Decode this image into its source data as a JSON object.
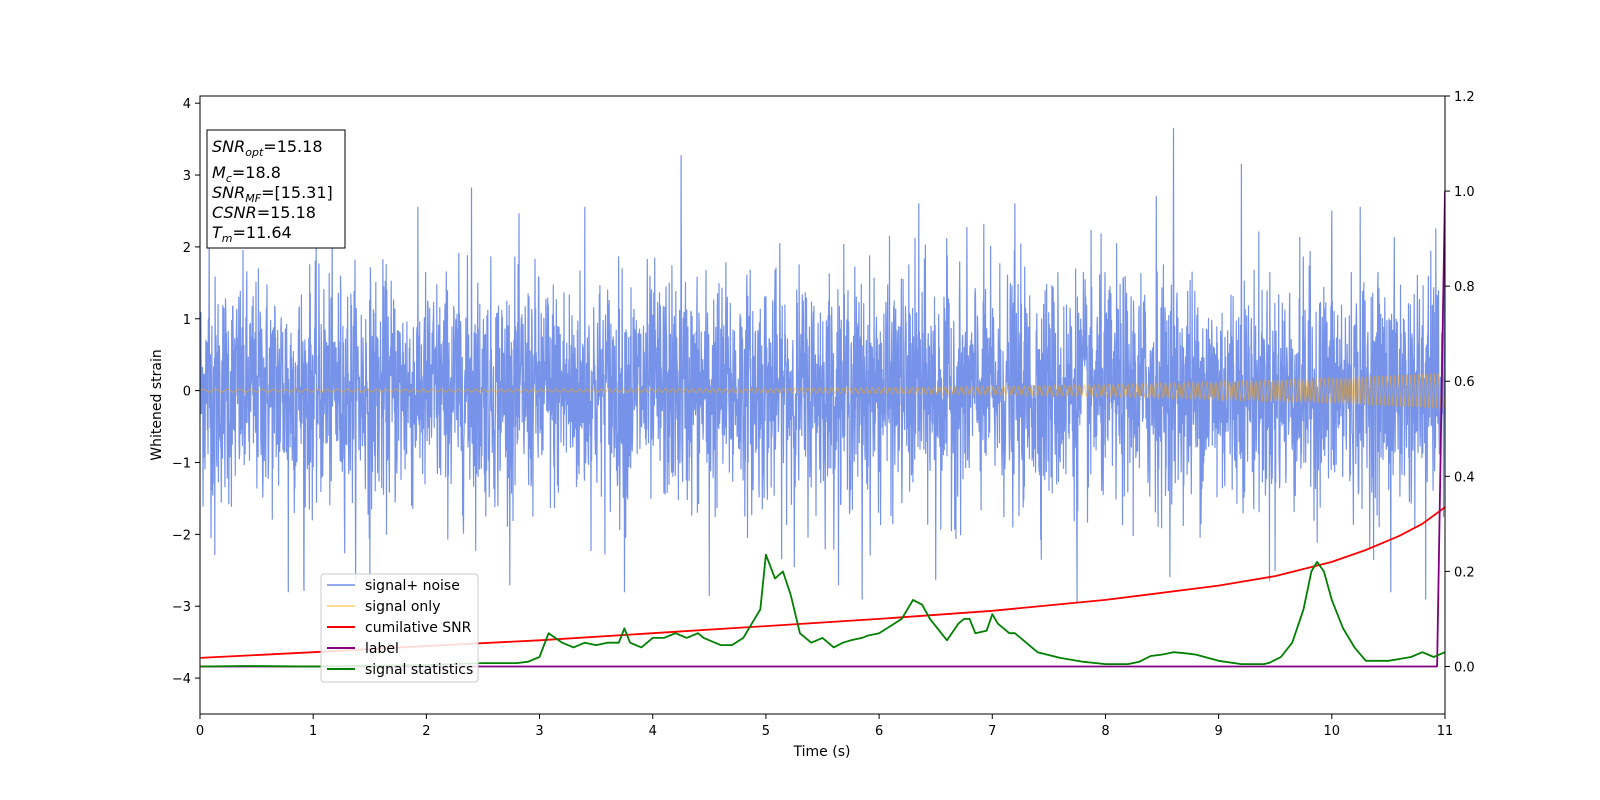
{
  "chart_data": {
    "type": "line",
    "xlabel": "Time (s)",
    "ylabel": "Whitened strain",
    "xlim": [
      0,
      11
    ],
    "ylim": [
      -4.5,
      4.1
    ],
    "ylim_right": [
      -0.1,
      1.2
    ],
    "xticks": [
      0,
      1,
      2,
      3,
      4,
      5,
      6,
      7,
      8,
      9,
      10,
      11
    ],
    "yticks": [
      -4,
      -3,
      -2,
      -1,
      0,
      1,
      2,
      3,
      4
    ],
    "yticks_right": [
      0.0,
      0.2,
      0.4,
      0.6,
      0.8,
      1.0,
      1.2
    ],
    "grid": false,
    "legend_placement": "lower-left",
    "info_box": [
      {
        "sym": "SNR",
        "sub": "opt",
        "rest": "=15.18"
      },
      {
        "sym": "M",
        "sub": "c",
        "rest": "=18.8"
      },
      {
        "sym": "SNR",
        "sub": "MF",
        "rest": "=[15.31]"
      },
      {
        "sym": "CSNR",
        "sub": "",
        "rest": "=15.18"
      },
      {
        "sym": "T",
        "sub": "m",
        "rest": "=11.64"
      }
    ],
    "series": [
      {
        "name": "signal+ noise",
        "axis": "left",
        "color": "#4169E1",
        "noise_std": 0.78,
        "spikes": [
          [
            0.08,
            2.3
          ],
          [
            0.13,
            -2.28
          ],
          [
            0.78,
            -2.8
          ],
          [
            0.92,
            -2.78
          ],
          [
            1.5,
            -2.75
          ],
          [
            2.4,
            2.82
          ],
          [
            3.4,
            2.55
          ],
          [
            3.75,
            -2.8
          ],
          [
            4.25,
            3.27
          ],
          [
            4.5,
            -2.85
          ],
          [
            5.85,
            -2.9
          ],
          [
            6.35,
            2.6
          ],
          [
            6.5,
            -2.63
          ],
          [
            7.2,
            2.6
          ],
          [
            7.75,
            -2.95
          ],
          [
            8.45,
            2.7
          ],
          [
            8.6,
            3.65
          ],
          [
            9.2,
            3.15
          ],
          [
            9.5,
            -2.5
          ],
          [
            10.0,
            2.5
          ],
          [
            10.25,
            2.55
          ],
          [
            10.52,
            -2.8
          ],
          [
            10.83,
            -2.9
          ],
          [
            10.92,
            2.25
          ]
        ]
      },
      {
        "name": "signal only",
        "axis": "left",
        "color": "#FFA500",
        "amplitude_start": 0.02,
        "amplitude_end": 0.25
      },
      {
        "name": "cumilative SNR",
        "axis": "right",
        "color": "#FF0000",
        "x": [
          0,
          1,
          2,
          3,
          4,
          5,
          6,
          7,
          8,
          9,
          9.5,
          10,
          10.3,
          10.6,
          10.8,
          11
        ],
        "values": [
          0.018,
          0.03,
          0.043,
          0.055,
          0.07,
          0.085,
          0.1,
          0.117,
          0.14,
          0.17,
          0.19,
          0.22,
          0.245,
          0.275,
          0.3,
          0.335
        ]
      },
      {
        "name": "label",
        "axis": "right",
        "color": "#800080",
        "x": [
          0,
          10.93,
          11
        ],
        "values": [
          0.0,
          0.0,
          1.0
        ]
      },
      {
        "name": "signal statistics",
        "axis": "right",
        "color": "#008000",
        "x": [
          0,
          0.4,
          1,
          2,
          2.5,
          2.8,
          2.9,
          3.0,
          3.08,
          3.2,
          3.3,
          3.4,
          3.5,
          3.6,
          3.7,
          3.75,
          3.8,
          3.9,
          4.0,
          4.1,
          4.2,
          4.3,
          4.4,
          4.45,
          4.55,
          4.6,
          4.7,
          4.8,
          4.9,
          4.95,
          5.0,
          5.08,
          5.15,
          5.22,
          5.3,
          5.4,
          5.5,
          5.6,
          5.68,
          5.75,
          5.85,
          5.9,
          6.0,
          6.1,
          6.2,
          6.3,
          6.38,
          6.45,
          6.55,
          6.6,
          6.7,
          6.75,
          6.8,
          6.85,
          6.95,
          7.0,
          7.05,
          7.1,
          7.15,
          7.2,
          7.3,
          7.4,
          7.6,
          7.8,
          8.0,
          8.2,
          8.3,
          8.4,
          8.5,
          8.6,
          8.7,
          8.8,
          9.0,
          9.2,
          9.4,
          9.45,
          9.55,
          9.65,
          9.75,
          9.82,
          9.87,
          9.93,
          10.0,
          10.1,
          10.2,
          10.3,
          10.5,
          10.7,
          10.8,
          10.9,
          11.0
        ],
        "values": [
          0.0,
          0.001,
          0.0,
          0.003,
          0.007,
          0.007,
          0.01,
          0.02,
          0.07,
          0.05,
          0.04,
          0.05,
          0.045,
          0.05,
          0.05,
          0.08,
          0.05,
          0.04,
          0.06,
          0.06,
          0.07,
          0.06,
          0.07,
          0.06,
          0.05,
          0.045,
          0.045,
          0.06,
          0.1,
          0.12,
          0.235,
          0.185,
          0.2,
          0.15,
          0.07,
          0.05,
          0.06,
          0.04,
          0.05,
          0.055,
          0.06,
          0.065,
          0.07,
          0.085,
          0.1,
          0.14,
          0.13,
          0.1,
          0.07,
          0.055,
          0.09,
          0.1,
          0.1,
          0.07,
          0.075,
          0.11,
          0.09,
          0.08,
          0.07,
          0.07,
          0.05,
          0.03,
          0.018,
          0.01,
          0.005,
          0.005,
          0.01,
          0.022,
          0.025,
          0.03,
          0.028,
          0.025,
          0.012,
          0.005,
          0.005,
          0.008,
          0.02,
          0.05,
          0.12,
          0.2,
          0.22,
          0.2,
          0.14,
          0.08,
          0.04,
          0.012,
          0.012,
          0.02,
          0.03,
          0.02,
          0.03
        ]
      }
    ]
  }
}
